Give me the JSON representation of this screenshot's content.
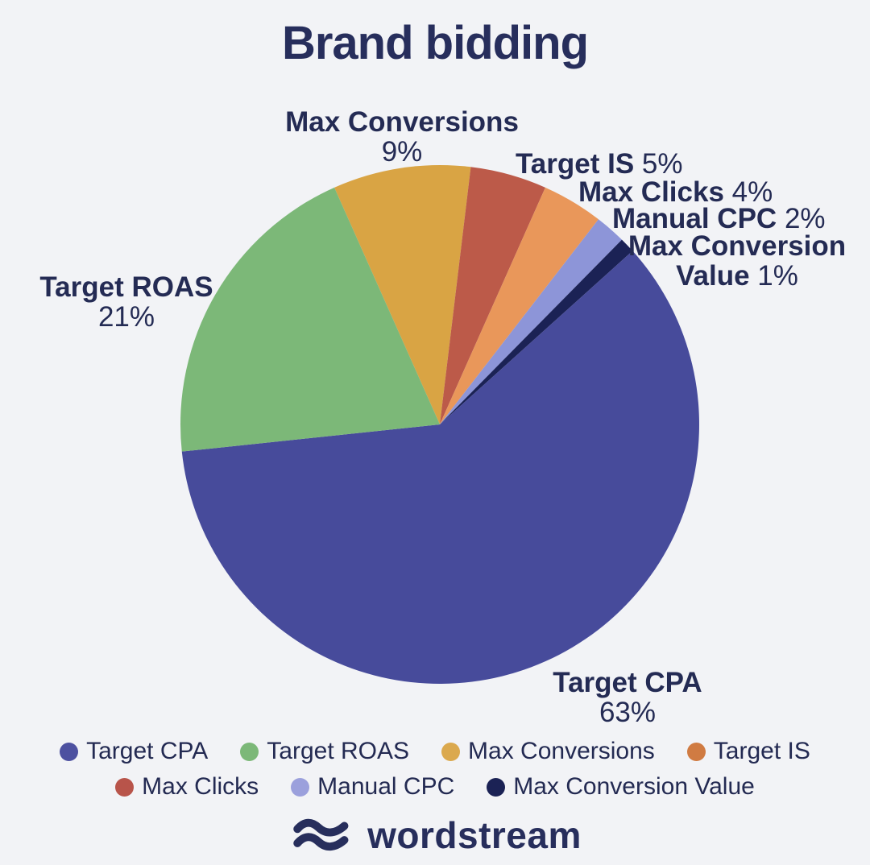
{
  "page": {
    "background": "#f2f3f6",
    "text_color": "#252c5b"
  },
  "title": "Brand bidding",
  "chart_data": {
    "type": "pie",
    "title": "Brand bidding",
    "categories": [
      "Target CPA",
      "Target ROAS",
      "Max Conversions",
      "Target IS",
      "Max Clicks",
      "Manual CPC",
      "Max Conversion Value"
    ],
    "values": [
      63,
      21,
      9,
      5,
      4,
      2,
      1
    ],
    "legend_position": "bottom",
    "start_angle_deg": -24,
    "slices": [
      {
        "label": "Max Conversions",
        "value": 9,
        "color": "#d9a444"
      },
      {
        "label": "Target IS",
        "value": 5,
        "color": "#bc5a49"
      },
      {
        "label": "Max Clicks",
        "value": 4,
        "color": "#e9975a"
      },
      {
        "label": "Manual CPC",
        "value": 2,
        "color": "#8d95d8"
      },
      {
        "label": "Max Conversion Value",
        "value": 1,
        "color": "#1b2255"
      },
      {
        "label": "Target CPA",
        "value": 63,
        "color": "#474b9b"
      },
      {
        "label": "Target ROAS",
        "value": 21,
        "color": "#7cb878"
      }
    ]
  },
  "pie_labels": {
    "max_conversions": {
      "name": "Max Conversions",
      "pct": "9%"
    },
    "target_is": {
      "name": "Target IS",
      "pct": "5%"
    },
    "max_clicks": {
      "name": "Max Clicks",
      "pct": "4%"
    },
    "manual_cpc": {
      "name": "Manual CPC",
      "pct": "2%"
    },
    "max_conversion_value": {
      "name_line1": "Max Conversion",
      "name_line2": "Value",
      "pct": "1%"
    },
    "target_roas": {
      "name": "Target ROAS",
      "pct": "21%"
    },
    "target_cpa": {
      "name": "Target CPA",
      "pct": "63%"
    }
  },
  "legend": {
    "row1": [
      {
        "label": "Target CPA",
        "color": "#4d51a0"
      },
      {
        "label": "Target ROAS",
        "color": "#7cb878"
      },
      {
        "label": "Max Conversions",
        "color": "#dba94e"
      },
      {
        "label": "Target IS",
        "color": "#d07b42"
      }
    ],
    "row2": [
      {
        "label": "Max Clicks",
        "color": "#b8544a"
      },
      {
        "label": "Manual CPC",
        "color": "#9ba0dc"
      },
      {
        "label": "Max Conversion Value",
        "color": "#1b2255"
      }
    ]
  },
  "footer": {
    "brand": "wordstream",
    "brand_color": "#272e5c"
  }
}
